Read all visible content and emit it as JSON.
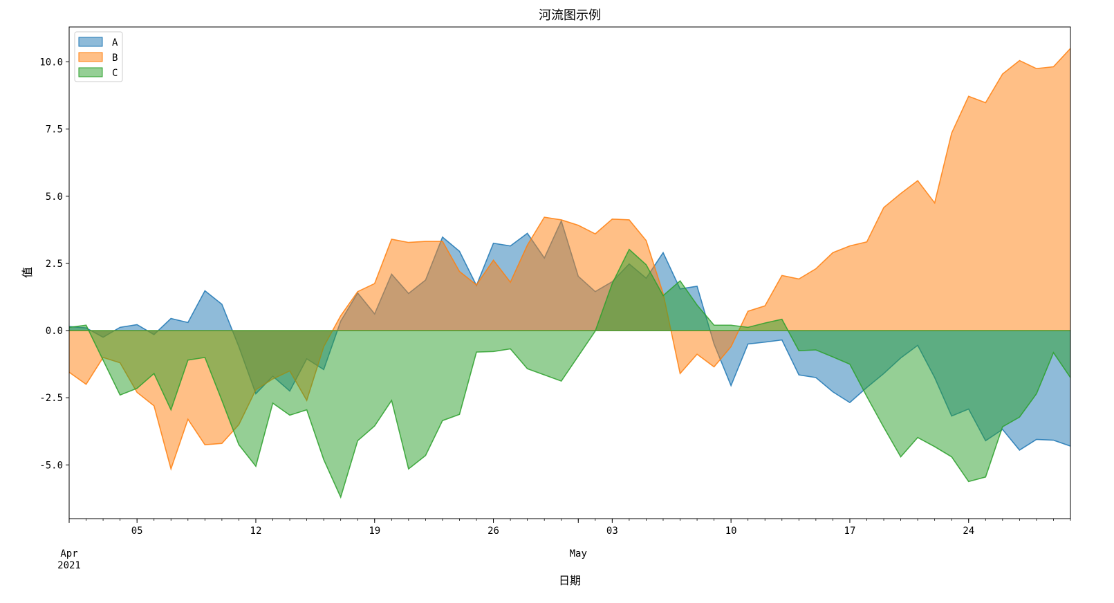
{
  "chart_data": {
    "type": "area",
    "title": "河流图示例",
    "xlabel": "日期",
    "ylabel": "值",
    "x_start": "2021-04-01",
    "x_end": "2021-05-30",
    "ylim": [
      -7.0,
      11.3
    ],
    "yticks": [
      -5.0,
      -2.5,
      0.0,
      2.5,
      5.0,
      7.5,
      10.0
    ],
    "ytick_labels": [
      "-5.0",
      "-2.5",
      "0.0",
      "2.5",
      "5.0",
      "7.5",
      "10.0"
    ],
    "xticks_major": [
      {
        "date": "2021-04-05",
        "label": "05"
      },
      {
        "date": "2021-04-12",
        "label": "12"
      },
      {
        "date": "2021-04-19",
        "label": "19"
      },
      {
        "date": "2021-04-26",
        "label": "26"
      },
      {
        "date": "2021-05-03",
        "label": "03"
      },
      {
        "date": "2021-05-10",
        "label": "10"
      },
      {
        "date": "2021-05-17",
        "label": "17"
      },
      {
        "date": "2021-05-24",
        "label": "24"
      }
    ],
    "month_labels": [
      {
        "date": "2021-04-01",
        "label": "Apr",
        "sub": "2021"
      },
      {
        "date": "2021-05-01",
        "label": "May",
        "sub": ""
      }
    ],
    "legend_position": "upper-left",
    "grid": false,
    "series": [
      {
        "name": "A",
        "color": "#1f77b4",
        "fill": "rgba(31,119,180,0.5)",
        "values": [
          0.15,
          0.1,
          -0.25,
          0.12,
          0.22,
          -0.15,
          0.45,
          0.3,
          1.48,
          0.98,
          -0.6,
          -2.35,
          -1.7,
          -2.25,
          -1.05,
          -1.45,
          0.35,
          1.4,
          0.62,
          2.1,
          1.38,
          1.88,
          3.48,
          2.95,
          1.68,
          3.25,
          3.15,
          3.62,
          2.7,
          4.08,
          2.02,
          1.45,
          1.82,
          2.48,
          1.95,
          2.9,
          1.55,
          1.65,
          -0.5,
          -2.05,
          -0.5,
          -0.43,
          -0.35,
          -1.65,
          -1.75,
          -2.28,
          -2.68,
          -2.12,
          -1.6,
          -1.02,
          -0.55,
          -1.75,
          -3.18,
          -2.92,
          -4.1,
          -3.68,
          -4.45,
          -4.05,
          -4.08,
          -4.3
        ]
      },
      {
        "name": "B",
        "color": "#ff7f0e",
        "fill": "rgba(255,127,14,0.5)",
        "values": [
          -1.55,
          -2.0,
          -1.0,
          -1.2,
          -2.3,
          -2.8,
          -5.15,
          -3.3,
          -4.25,
          -4.2,
          -3.5,
          -2.2,
          -1.8,
          -1.5,
          -2.6,
          -0.6,
          0.55,
          1.45,
          1.75,
          3.4,
          3.28,
          3.32,
          3.32,
          2.2,
          1.7,
          2.62,
          1.8,
          3.18,
          4.22,
          4.12,
          3.92,
          3.6,
          4.15,
          4.12,
          3.35,
          1.38,
          -1.6,
          -0.88,
          -1.35,
          -0.6,
          0.72,
          0.92,
          2.05,
          1.92,
          2.3,
          2.9,
          3.15,
          3.3,
          4.58,
          5.1,
          5.58,
          4.75,
          7.35,
          8.72,
          8.48,
          9.55,
          10.05,
          9.75,
          9.82,
          10.5
        ]
      },
      {
        "name": "C",
        "color": "#2ca02c",
        "fill": "rgba(44,160,44,0.5)",
        "values": [
          0.12,
          0.2,
          -1.1,
          -2.4,
          -2.15,
          -1.6,
          -2.95,
          -1.1,
          -1.0,
          -2.6,
          -4.25,
          -5.05,
          -2.7,
          -3.15,
          -2.95,
          -4.8,
          -6.2,
          -4.1,
          -3.55,
          -2.6,
          -5.15,
          -4.65,
          -3.35,
          -3.12,
          -0.8,
          -0.78,
          -0.68,
          -1.42,
          -1.65,
          -1.88,
          -0.95,
          -0.02,
          1.75,
          3.02,
          2.45,
          1.3,
          1.85,
          0.95,
          0.2,
          0.2,
          0.12,
          0.28,
          0.42,
          -0.75,
          -0.72,
          -0.98,
          -1.25,
          -2.45,
          -3.6,
          -4.7,
          -3.98,
          -4.32,
          -4.7,
          -5.62,
          -5.45,
          -3.58,
          -3.22,
          -2.35,
          -0.82,
          -1.75
        ]
      }
    ]
  }
}
